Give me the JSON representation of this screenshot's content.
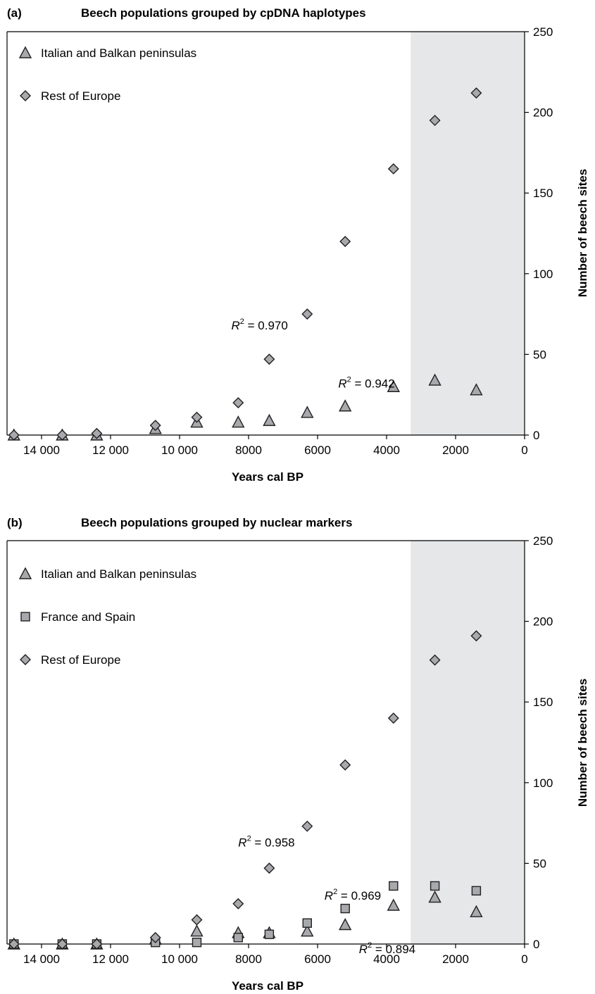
{
  "chart_data": [
    {
      "type": "scatter",
      "panel": "(a)",
      "title": "Beech populations grouped by cpDNA haplotypes",
      "xlabel": "Years cal BP",
      "ylabel": "Number of beech sites",
      "xlim": [
        15000,
        0
      ],
      "ylim": [
        0,
        250
      ],
      "x_reversed": true,
      "y_axis_side": "right",
      "x_ticks": [
        14000,
        12000,
        10000,
        8000,
        6000,
        4000,
        2000,
        0
      ],
      "x_tick_labels": [
        "14 000",
        "12 000",
        "10 000",
        "8000",
        "6000",
        "4000",
        "2000",
        "0"
      ],
      "y_ticks": [
        0,
        50,
        100,
        150,
        200,
        250
      ],
      "y_tick_labels": [
        "0",
        "50",
        "100",
        "150",
        "200",
        "250"
      ],
      "shaded_region": [
        3300,
        0
      ],
      "grid": false,
      "legend_position": "top-left",
      "series": [
        {
          "name": "Italian and Balkan peninsulas",
          "marker": "triangle",
          "x": [
            14800,
            13400,
            12400,
            10700,
            9500,
            8300,
            7400,
            6300,
            5200,
            3800,
            2600,
            1400
          ],
          "y": [
            0,
            0,
            0,
            4,
            8,
            8,
            9,
            14,
            18,
            30,
            34,
            28
          ]
        },
        {
          "name": "Rest of Europe",
          "marker": "diamond",
          "x": [
            14800,
            13400,
            12400,
            10700,
            9500,
            8300,
            7400,
            6300,
            5200,
            3800,
            2600,
            1400
          ],
          "y": [
            0,
            0,
            1,
            6,
            11,
            20,
            47,
            75,
            120,
            165,
            195,
            212
          ]
        }
      ],
      "annotations": [
        {
          "prefix": "R",
          "sup": "2",
          "text": " = 0.970",
          "x": 8500,
          "y": 68
        },
        {
          "prefix": "R",
          "sup": "2",
          "text": " = 0.942",
          "x": 5400,
          "y": 32
        }
      ]
    },
    {
      "type": "scatter",
      "panel": "(b)",
      "title": "Beech populations grouped by nuclear markers",
      "xlabel": "Years cal BP",
      "ylabel": "Number of beech sites",
      "xlim": [
        15000,
        0
      ],
      "ylim": [
        0,
        250
      ],
      "x_reversed": true,
      "y_axis_side": "right",
      "x_ticks": [
        14000,
        12000,
        10000,
        8000,
        6000,
        4000,
        2000,
        0
      ],
      "x_tick_labels": [
        "14 000",
        "12 000",
        "10 000",
        "8000",
        "6000",
        "4000",
        "2000",
        "0"
      ],
      "y_ticks": [
        0,
        50,
        100,
        150,
        200,
        250
      ],
      "y_tick_labels": [
        "0",
        "50",
        "100",
        "150",
        "200",
        "250"
      ],
      "shaded_region": [
        3300,
        0
      ],
      "grid": false,
      "legend_position": "top-left",
      "series": [
        {
          "name": "Italian and Balkan peninsulas",
          "marker": "triangle",
          "x": [
            14800,
            13400,
            12400,
            10700,
            9500,
            8300,
            7400,
            6300,
            5200,
            3800,
            2600,
            1400
          ],
          "y": [
            0,
            0,
            0,
            3,
            8,
            7,
            7,
            8,
            12,
            24,
            29,
            20
          ]
        },
        {
          "name": "France and Spain",
          "marker": "square",
          "x": [
            14800,
            13400,
            12400,
            10700,
            9500,
            8300,
            7400,
            6300,
            5200,
            3800,
            2600,
            1400
          ],
          "y": [
            0,
            0,
            0,
            1,
            1,
            4,
            6,
            13,
            22,
            36,
            36,
            33
          ]
        },
        {
          "name": "Rest of Europe",
          "marker": "diamond",
          "x": [
            14800,
            13400,
            12400,
            10700,
            9500,
            8300,
            7400,
            6300,
            5200,
            3800,
            2600,
            1400
          ],
          "y": [
            0,
            0,
            0,
            4,
            15,
            25,
            47,
            73,
            111,
            140,
            176,
            191
          ]
        }
      ],
      "annotations": [
        {
          "prefix": "R",
          "sup": "2",
          "text": " = 0.958",
          "x": 8300,
          "y": 63
        },
        {
          "prefix": "R",
          "sup": "2",
          "text": " = 0.969",
          "x": 5800,
          "y": 30
        },
        {
          "prefix": "R",
          "sup": "2",
          "text": " = 0.894",
          "x": 4800,
          "y": -3
        }
      ]
    }
  ]
}
